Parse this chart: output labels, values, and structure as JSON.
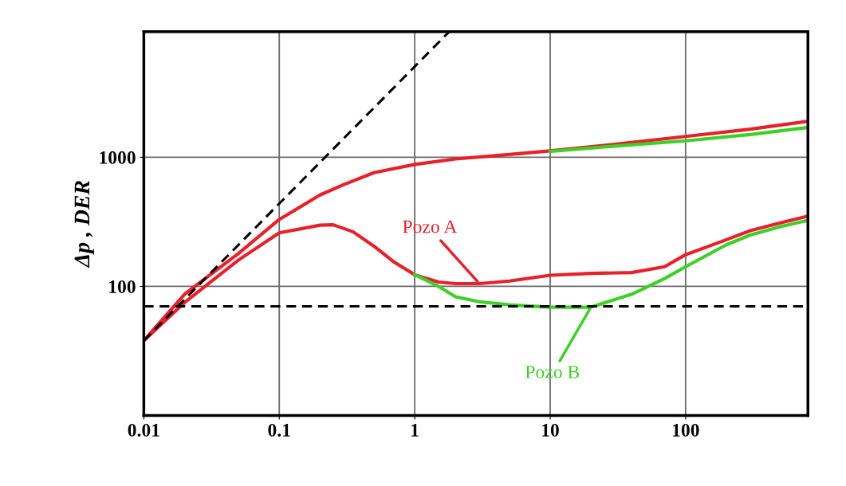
{
  "chart_data": {
    "type": "line",
    "ylabel": "Δp , DER",
    "log": "xy",
    "grid": true,
    "xlim": [
      0.01,
      800
    ],
    "xticks": [
      0.01,
      0.1,
      1,
      10,
      100
    ],
    "ylim": [
      10,
      9400
    ],
    "yticks": [
      100,
      1000
    ],
    "series": [
      {
        "color": "#e8202a",
        "x": [
          0.01,
          0.02,
          0.05,
          0.1,
          0.2,
          0.3,
          0.5,
          1,
          2,
          5,
          10,
          30,
          100,
          300,
          800
        ],
        "values": [
          38,
          87,
          180,
          330,
          510,
          615,
          760,
          880,
          970,
          1050,
          1120,
          1260,
          1450,
          1650,
          1900
        ]
      },
      {
        "color": "#3ecf28",
        "x": [
          10,
          30,
          100,
          300,
          800
        ],
        "values": [
          1110,
          1220,
          1340,
          1500,
          1700
        ]
      },
      {
        "name": "Pozo A",
        "color": "#e8202a",
        "x": [
          0.01,
          0.02,
          0.05,
          0.1,
          0.2,
          0.25,
          0.35,
          0.5,
          0.7,
          1,
          1.5,
          2,
          3,
          5,
          10,
          20,
          40,
          70,
          100,
          200,
          300,
          500,
          800
        ],
        "values": [
          38,
          75,
          160,
          260,
          298,
          300,
          265,
          205,
          155,
          123,
          108,
          105,
          105,
          110,
          122,
          126,
          128,
          142,
          176,
          230,
          270,
          310,
          350
        ]
      },
      {
        "name": "Pozo B",
        "color": "#3ecf28",
        "x": [
          1,
          1.5,
          2,
          3,
          5,
          10,
          20,
          40,
          70,
          100,
          200,
          300,
          500,
          800
        ],
        "values": [
          123,
          100,
          83,
          76,
          72,
          69,
          69,
          87,
          115,
          142,
          210,
          250,
          290,
          325
        ]
      },
      {
        "color": "#000000",
        "line_style": "dashed",
        "x": [
          0.01,
          1.8
        ],
        "values": [
          38,
          9400
        ]
      }
    ],
    "ref_lines": [
      {
        "axis": "y",
        "value": 70,
        "color": "#000000",
        "line_style": "dashed"
      }
    ]
  }
}
